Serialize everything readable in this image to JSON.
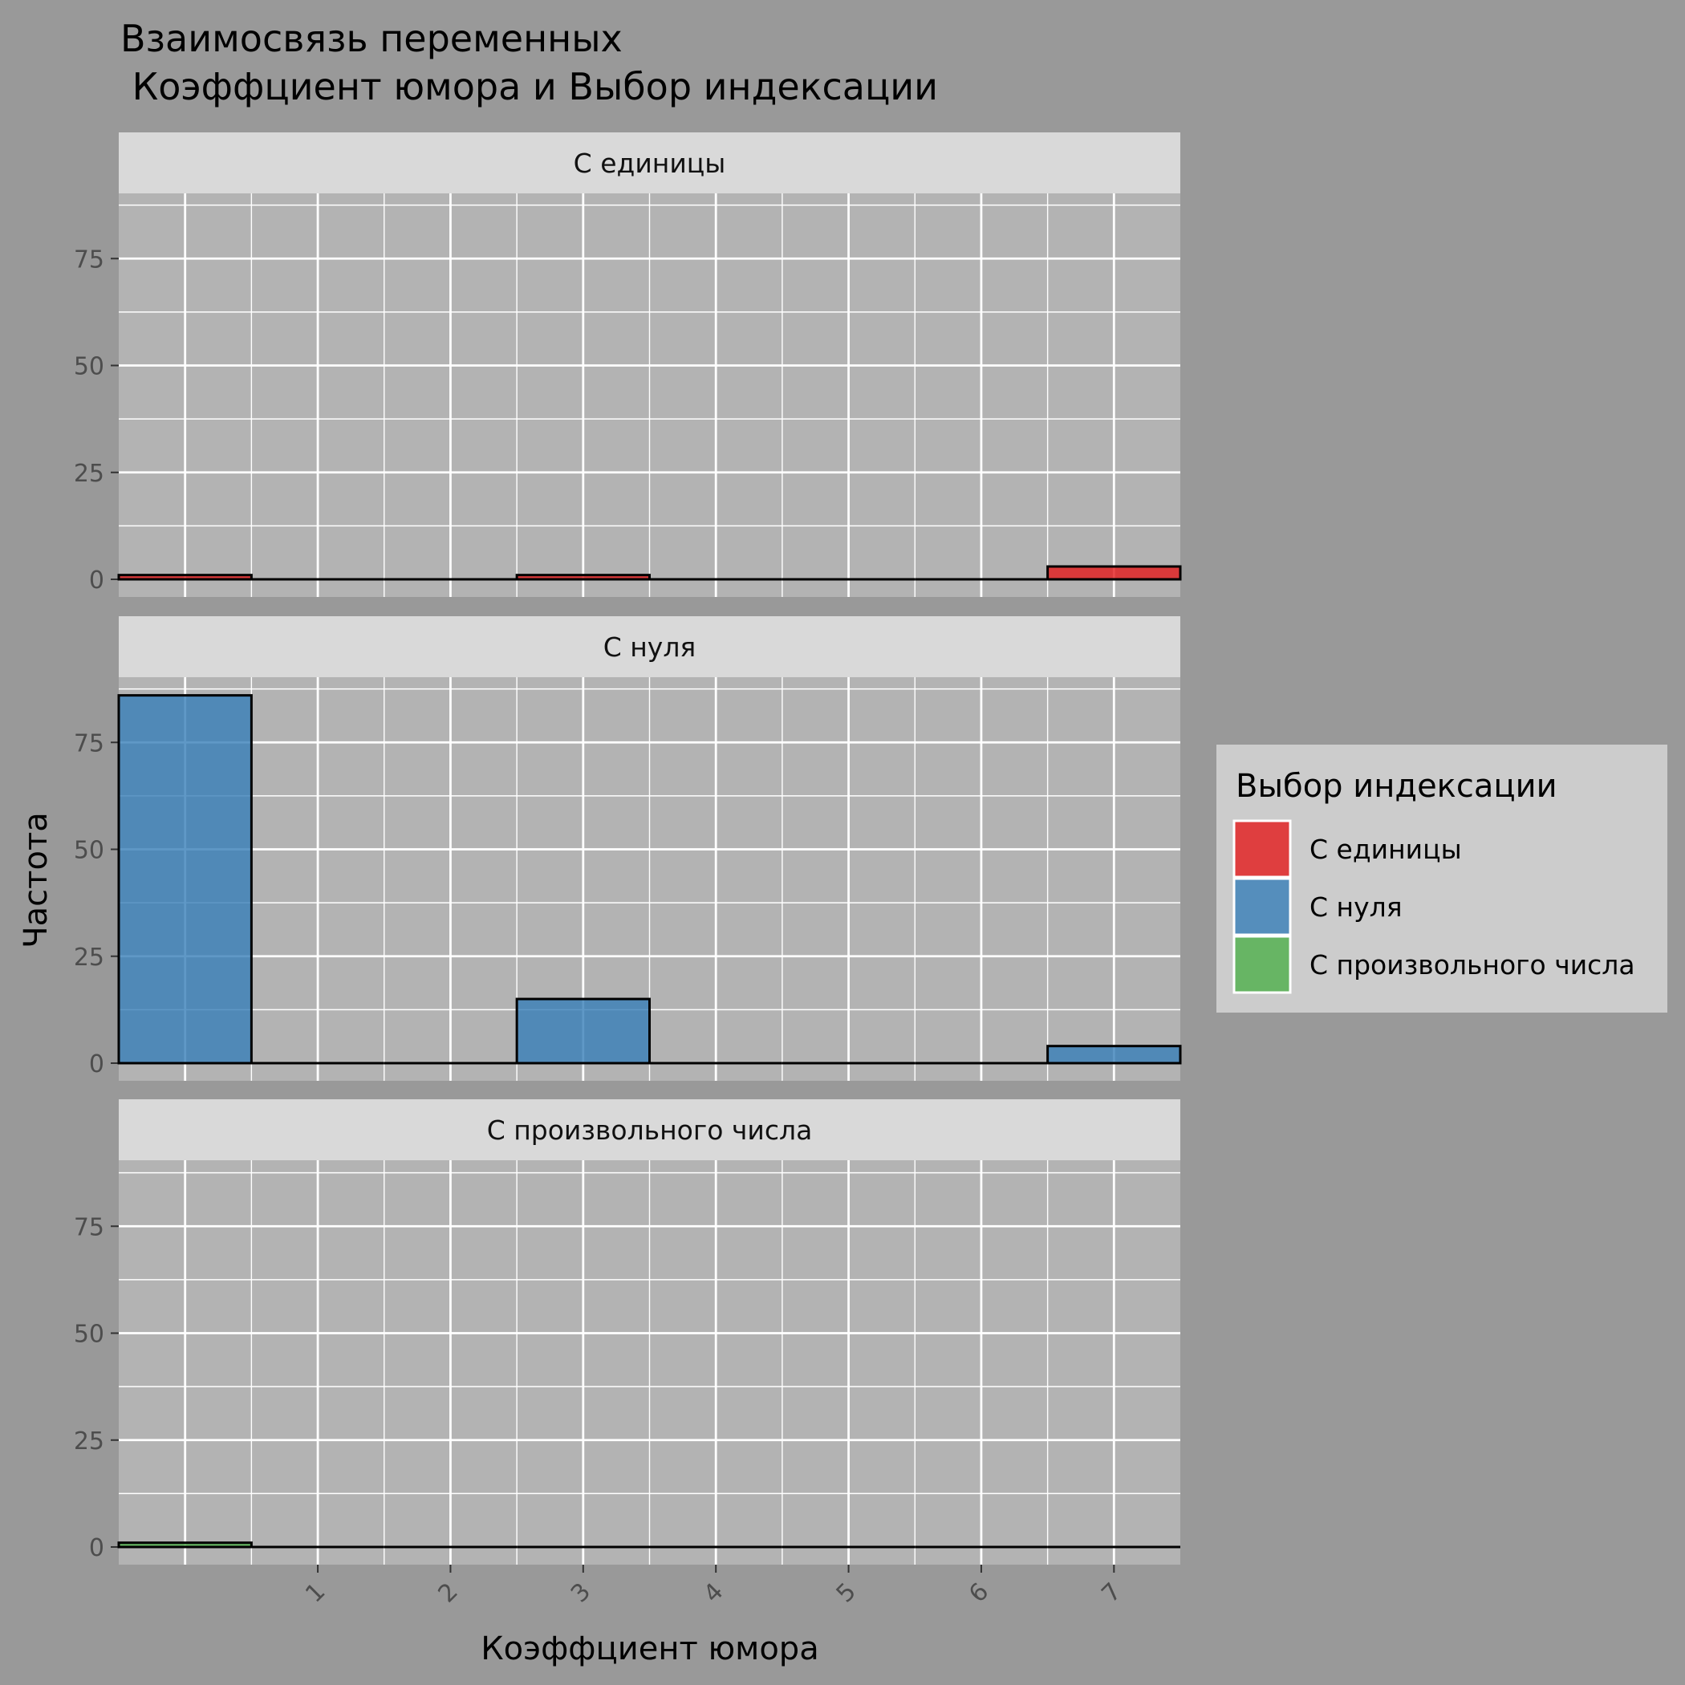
{
  "chart_data": {
    "type": "bar",
    "title_line1": "Взаимосвязь переменных",
    "title_line2": " Коэффциент юмора и Выбор индексации",
    "xlabel": "Коэффциент юмора",
    "ylabel": "Частота",
    "x_ticks": [
      "1",
      "2",
      "3",
      "4",
      "5",
      "6",
      "7"
    ],
    "y_ticks": [
      "0",
      "25",
      "50",
      "75"
    ],
    "xlim": [
      -0.5,
      7.5
    ],
    "ylim": [
      0,
      90
    ],
    "bin_width": 1,
    "grid": true,
    "legend": {
      "title": "Выбор индексации",
      "position": "right"
    },
    "facets": [
      {
        "label": "С единицы",
        "color": "#E41A1C",
        "bars": [
          {
            "x": 0,
            "count": 1
          },
          {
            "x": 1,
            "count": 0
          },
          {
            "x": 2,
            "count": 0
          },
          {
            "x": 3,
            "count": 1
          },
          {
            "x": 4,
            "count": 0
          },
          {
            "x": 5,
            "count": 0
          },
          {
            "x": 6,
            "count": 0
          },
          {
            "x": 7,
            "count": 3
          }
        ]
      },
      {
        "label": "С нуля",
        "color": "#377EB8",
        "bars": [
          {
            "x": 0,
            "count": 86
          },
          {
            "x": 1,
            "count": 0
          },
          {
            "x": 2,
            "count": 0
          },
          {
            "x": 3,
            "count": 15
          },
          {
            "x": 4,
            "count": 0
          },
          {
            "x": 5,
            "count": 0
          },
          {
            "x": 6,
            "count": 0
          },
          {
            "x": 7,
            "count": 4
          }
        ]
      },
      {
        "label": "С произвольного числа",
        "color": "#4DAF4A",
        "bars": [
          {
            "x": 0,
            "count": 1
          },
          {
            "x": 1,
            "count": 0
          },
          {
            "x": 2,
            "count": 0
          },
          {
            "x": 3,
            "count": 0
          },
          {
            "x": 4,
            "count": 0
          },
          {
            "x": 5,
            "count": 0
          },
          {
            "x": 6,
            "count": 0
          },
          {
            "x": 7,
            "count": 0
          }
        ]
      }
    ]
  }
}
